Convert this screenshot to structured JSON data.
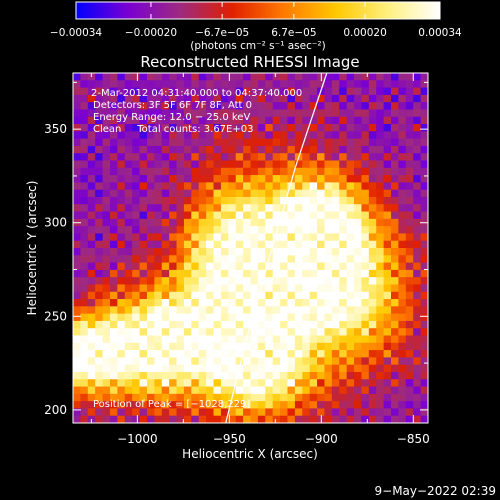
{
  "chart_data": {
    "type": "heatmap",
    "title": "Reconstructed RHESSI Image",
    "xlabel": "Heliocentric X (arcsec)",
    "ylabel": "Heliocentric Y (arcsec)",
    "xlim": [
      -1035,
      -842
    ],
    "ylim": [
      193,
      380
    ],
    "x_ticks": [
      -1000,
      -950,
      -900,
      -850
    ],
    "x_tick_labels": [
      "−1000",
      "−950",
      "−900",
      "−850"
    ],
    "y_ticks": [
      200,
      250,
      300,
      350
    ],
    "y_tick_labels": [
      "200",
      "250",
      "300",
      "350"
    ],
    "colorbar": {
      "range": [
        -0.00034,
        0.00034
      ],
      "tick_values": [
        -0.00034,
        -0.0002,
        -6.7e-05,
        6.7e-05,
        0.0002,
        0.00034
      ],
      "tick_labels": [
        "−0.00034",
        "−0.00020",
        "−6.7e−05",
        "6.7e−05",
        "0.00020",
        "0.00034"
      ],
      "unit_label": "(photons cm⁻² s⁻¹ asec⁻²)",
      "colormap": [
        "#0000ff",
        "#7a00d2",
        "#9e2a80",
        "#e02000",
        "#ff7a00",
        "#ffc800",
        "#fff080",
        "#ffffff"
      ]
    },
    "annotations": {
      "time_range": "2-Mar-2012 04:31:40.000 to 04:37:40.000",
      "detectors": "Detectors: 3F 5F 6F 7F 8F, Att 0",
      "energy": "Energy Range: 12.0 − 25.0 keV",
      "clean": "Clean     Total counts: 3.67E+03",
      "peak": "Position of Peak = [−1028,229]"
    },
    "limb_curve": [
      [
        -952,
        193
      ],
      [
        -940,
        240
      ],
      [
        -928,
        282
      ],
      [
        -914,
        330
      ],
      [
        -897,
        380
      ]
    ],
    "sources": [
      {
        "x": -925,
        "y": 270,
        "amp": 1.0,
        "sx": 28,
        "sy": 40
      },
      {
        "x": -900,
        "y": 300,
        "amp": 0.85,
        "sx": 16,
        "sy": 16
      },
      {
        "x": -880,
        "y": 265,
        "amp": 0.7,
        "sx": 22,
        "sy": 28
      },
      {
        "x": -975,
        "y": 240,
        "amp": 0.75,
        "sx": 30,
        "sy": 22
      },
      {
        "x": -1028,
        "y": 229,
        "amp": 0.95,
        "sx": 12,
        "sy": 12
      },
      {
        "x": -1000,
        "y": 230,
        "amp": 0.6,
        "sx": 25,
        "sy": 18
      },
      {
        "x": -955,
        "y": 290,
        "amp": 0.45,
        "sx": 15,
        "sy": 22
      },
      {
        "x": -935,
        "y": 215,
        "amp": 0.55,
        "sx": 18,
        "sy": 14
      }
    ]
  },
  "footer": {
    "date": "9−May−2022 02:39"
  }
}
